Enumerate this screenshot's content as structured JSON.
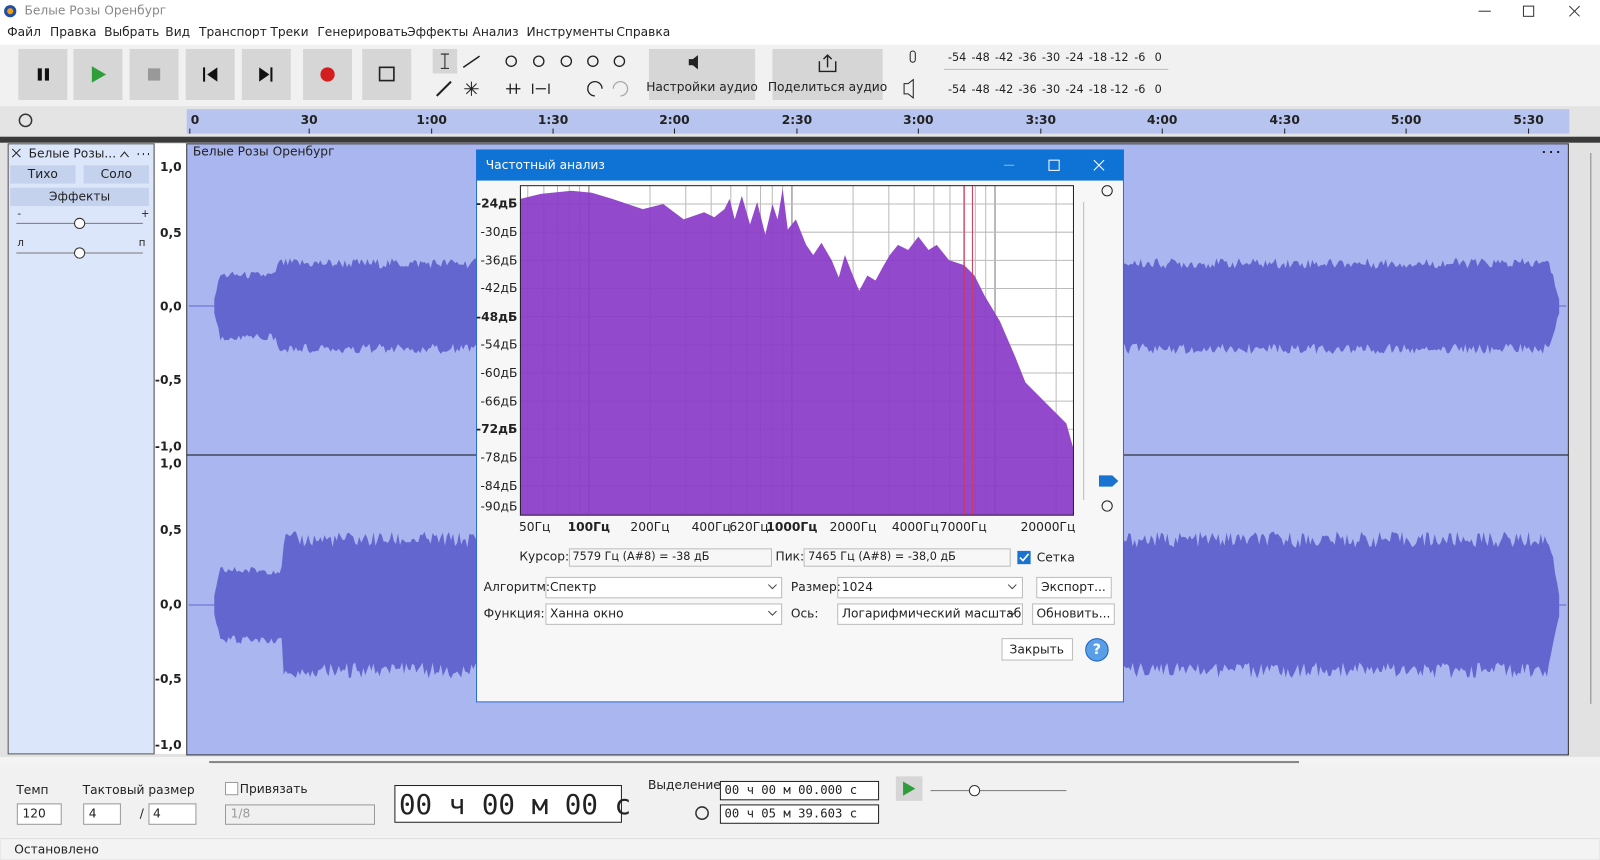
{
  "window": {
    "title": "Белые Розы Оренбург"
  },
  "menu": [
    "Файл",
    "Правка",
    "Выбрать",
    "Вид",
    "Транспорт",
    "Треки",
    "Генерировать",
    "Эффекты",
    "Анализ",
    "Инструменты",
    "Справка"
  ],
  "toolbar": {
    "audio_settings": "Настройки аудио",
    "share_audio": "Поделиться аудио",
    "meter_ticks": [
      "-54",
      "-48",
      "-42",
      "-36",
      "-30",
      "-24",
      "-18",
      "-12",
      "-6",
      "0"
    ]
  },
  "timeline": {
    "ticks": [
      "0",
      "30",
      "1:00",
      "1:30",
      "2:00",
      "2:30",
      "3:00",
      "3:30",
      "4:00",
      "4:30",
      "5:00",
      "5:30"
    ]
  },
  "track": {
    "name": "Белые Розы...",
    "mute": "Тихо",
    "solo": "Соло",
    "effects": "Эффекты",
    "gain_min": "-",
    "gain_max": "+",
    "pan_left": "л",
    "pan_right": "п",
    "clip_name": "Белые Розы Оренбург",
    "amplitude_ticks": [
      "1,0",
      "0,5",
      "0,0",
      "-0,5",
      "-1,0"
    ]
  },
  "dialog": {
    "title": "Частотный анализ",
    "y_labels": [
      "-24дБ",
      "-30дБ",
      "-36дБ",
      "-42дБ",
      "-48дБ",
      "-54дБ",
      "-60дБ",
      "-66дБ",
      "-72дБ",
      "-78дБ",
      "-84дБ",
      "-90дБ"
    ],
    "x_labels": [
      "50Гц",
      "100Гц",
      "200Гц",
      "400Гц",
      "620Гц",
      "1000Гц",
      "2000Гц",
      "4000Гц",
      "7000Гц",
      "20000Гц"
    ],
    "cursor_label": "Курсор:",
    "cursor_value": "7579 Гц (A#8) = -38 дБ",
    "peak_label": "Пик:",
    "peak_value": "7465 Гц (A#8) = -38,0 дБ",
    "grid": "Сетка",
    "algorithm_label": "Алгоритм:",
    "algorithm": "Спектр",
    "size_label": "Размер:",
    "size": "1024",
    "export": "Экспорт...",
    "function_label": "Функция:",
    "function": "Ханна  окно",
    "axis_label": "Ось:",
    "axis": "Логарифмический масштаб",
    "update": "Обновить...",
    "close": "Закрыть",
    "help": "?"
  },
  "bottom": {
    "tempo_label": "Темп",
    "tempo": "120",
    "time_signature_label": "Тактовый размер",
    "beats": "4",
    "slash": "/",
    "beat_unit": "4",
    "snap": "Привязать",
    "snap_value": "1/8",
    "time": "00 ч 00 м 00 с",
    "selection_label": "Выделение",
    "selection_start": "00 ч 00 м 00.000 с",
    "selection_end": "00 ч 05 м 39.603 с"
  },
  "status": "Остановлено"
}
